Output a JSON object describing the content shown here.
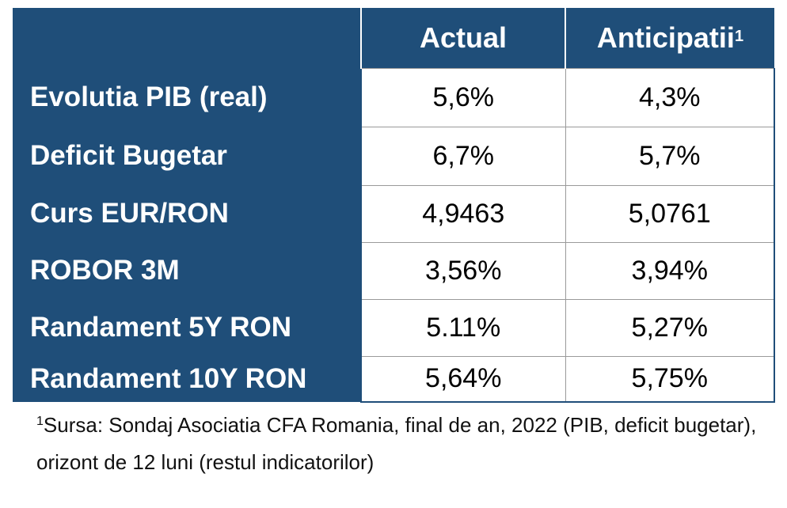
{
  "table": {
    "headers": {
      "actual": "Actual",
      "anticipated": "Anticipatii",
      "anticipated_marker": "1"
    },
    "rows": [
      {
        "label": "Evolutia PIB (real)",
        "actual": "5,6%",
        "anticipated": "4,3%"
      },
      {
        "label": "Deficit Bugetar",
        "actual": "6,7%",
        "anticipated": "5,7%"
      },
      {
        "label": "Curs EUR/RON",
        "actual": "4,9463",
        "anticipated": "5,0761"
      },
      {
        "label": "ROBOR 3M",
        "actual": "3,56%",
        "anticipated": "3,94%"
      },
      {
        "label": "Randament 5Y RON",
        "actual": "5.11%",
        "anticipated": "5,27%"
      },
      {
        "label": "Randament 10Y RON",
        "actual": "5,64%",
        "anticipated": "5,75%"
      }
    ]
  },
  "footnote": {
    "marker": "1",
    "text": "Sursa: Sondaj Asociatia CFA Romania, final de an, 2022 (PIB, deficit bugetar), orizont de 12 luni (restul indicatorilor)"
  },
  "colors": {
    "header_fill": "#1f4e79",
    "header_text": "#ffffff",
    "cell_border": "#9a9a9a"
  }
}
